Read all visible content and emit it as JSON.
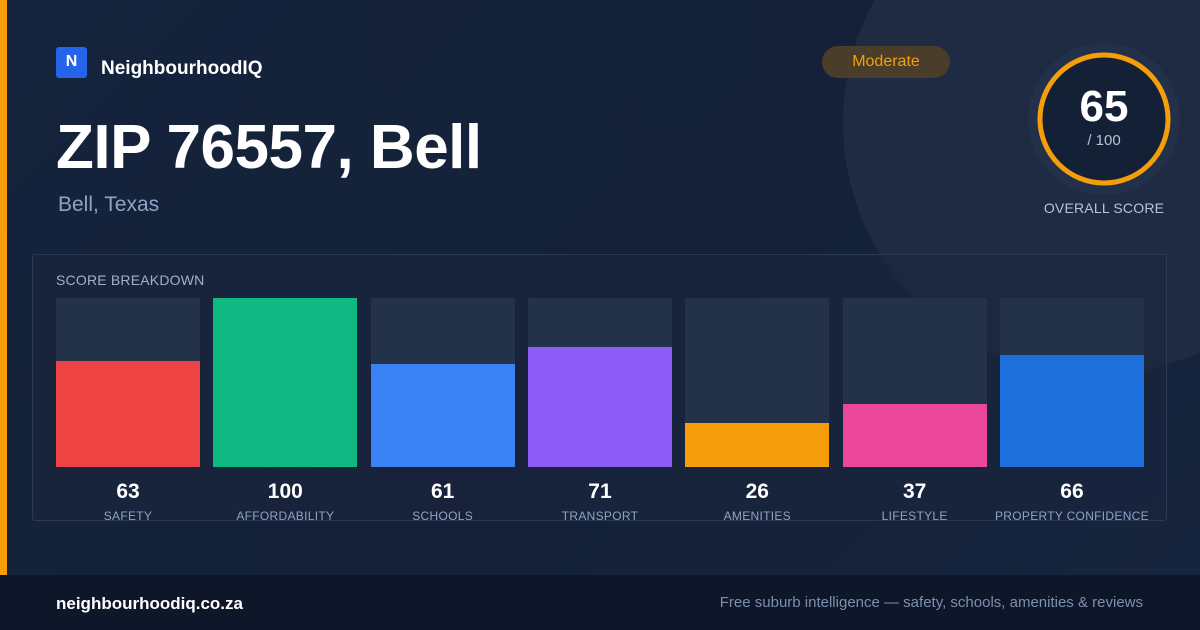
{
  "brand": {
    "logo_letter": "N",
    "name": "NeighbourhoodIQ"
  },
  "header": {
    "title": "ZIP 76557, Bell",
    "subtitle": "Bell, Texas"
  },
  "rating_badge": "Moderate",
  "overall": {
    "score": "65",
    "max": "/ 100",
    "caption": "OVERALL SCORE",
    "fraction": 0.65,
    "ring_color": "#f59e0b"
  },
  "breakdown": {
    "title": "SCORE BREAKDOWN",
    "scale_max": 100,
    "items": [
      {
        "label": "SAFETY",
        "value": "63",
        "score": 63,
        "color": "#ef4444"
      },
      {
        "label": "AFFORDABILITY",
        "value": "100",
        "score": 100,
        "color": "#10b981"
      },
      {
        "label": "SCHOOLS",
        "value": "61",
        "score": 61,
        "color": "#3b82f6"
      },
      {
        "label": "TRANSPORT",
        "value": "71",
        "score": 71,
        "color": "#8b5cf6"
      },
      {
        "label": "AMENITIES",
        "value": "26",
        "score": 26,
        "color": "#f59e0b"
      },
      {
        "label": "LIFESTYLE",
        "value": "37",
        "score": 37,
        "color": "#ec4899"
      },
      {
        "label": "PROPERTY CONFIDENCE",
        "value": "66",
        "score": 66,
        "color": "#1d6fdc"
      }
    ]
  },
  "footer": {
    "site": "neighbourhoodiq.co.za",
    "tagline": "Free suburb intelligence — safety, schools, amenities & reviews"
  },
  "colors": {
    "accent": "#f59e0b",
    "background": "#142035",
    "brand_blue": "#2563eb"
  }
}
